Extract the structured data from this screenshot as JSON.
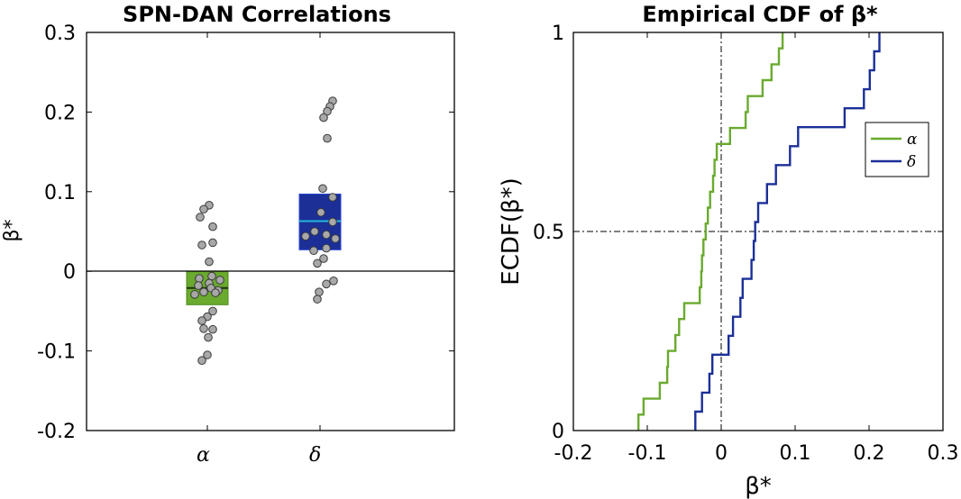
{
  "chart_data": [
    {
      "type": "scatter",
      "title": "SPN-DAN Correlations",
      "ylabel": "β*",
      "ylim": [
        -0.2,
        0.3
      ],
      "yticks": [
        -0.2,
        -0.1,
        0,
        0.1,
        0.2,
        0.3
      ],
      "ytick_labels": [
        "-0.2",
        "-0.1",
        "0",
        "0.1",
        "0.2",
        "0.3"
      ],
      "categories": [
        "α",
        "δ"
      ],
      "colors": {
        "α": "#6aaa2e",
        "δ": "#1b2f97",
        "points": "#a8a8a8",
        "median_δ": "#22b8d8"
      },
      "zero_line": true,
      "boxes": [
        {
          "category": "α",
          "q1": -0.042,
          "median": -0.021,
          "q3": 0.0
        },
        {
          "category": "δ",
          "q1": 0.027,
          "median": 0.063,
          "q3": 0.097
        }
      ],
      "series": [
        {
          "category": "α",
          "values": [
            0.083,
            0.078,
            0.068,
            0.056,
            0.036,
            0.033,
            0.012,
            -0.006,
            -0.009,
            -0.011,
            -0.015,
            -0.018,
            -0.021,
            -0.024,
            -0.026,
            -0.027,
            -0.029,
            -0.05,
            -0.057,
            -0.062,
            -0.072,
            -0.073,
            -0.083,
            -0.105,
            -0.112
          ]
        },
        {
          "category": "δ",
          "values": [
            0.214,
            0.207,
            0.201,
            0.193,
            0.167,
            0.104,
            0.093,
            0.074,
            0.062,
            0.05,
            0.046,
            0.044,
            0.041,
            0.029,
            0.026,
            0.016,
            0.01,
            -0.012,
            -0.016,
            -0.026,
            -0.035
          ]
        }
      ]
    },
    {
      "type": "line",
      "title": "Empirical CDF of β*",
      "xlabel": "β*",
      "ylabel": "ECDF(β*)",
      "xlim": [
        -0.2,
        0.3
      ],
      "ylim": [
        0,
        1
      ],
      "xticks": [
        -0.2,
        -0.1,
        0,
        0.1,
        0.2,
        0.3
      ],
      "xtick_labels": [
        "-0.2",
        "-0.1",
        "0",
        "0.1",
        "0.2",
        "0.3"
      ],
      "yticks": [
        0,
        0.5,
        1
      ],
      "ytick_labels": [
        "0",
        "0.5",
        "1"
      ],
      "reference_lines": {
        "x": 0,
        "y": 0.5
      },
      "legend": {
        "position": "top-right",
        "entries": [
          "α",
          "δ"
        ]
      },
      "series": [
        {
          "name": "α",
          "color": "#6aaa2e",
          "values": [
            -0.112,
            -0.105,
            -0.083,
            -0.073,
            -0.072,
            -0.062,
            -0.057,
            -0.05,
            -0.029,
            -0.027,
            -0.026,
            -0.024,
            -0.021,
            -0.018,
            -0.015,
            -0.011,
            -0.009,
            -0.006,
            0.012,
            0.033,
            0.036,
            0.056,
            0.068,
            0.078,
            0.083
          ]
        },
        {
          "name": "δ",
          "color": "#1b2f97",
          "values": [
            -0.035,
            -0.026,
            -0.016,
            -0.012,
            0.01,
            0.016,
            0.026,
            0.029,
            0.041,
            0.044,
            0.046,
            0.05,
            0.062,
            0.074,
            0.093,
            0.104,
            0.167,
            0.193,
            0.201,
            0.207,
            0.214
          ]
        }
      ]
    }
  ]
}
